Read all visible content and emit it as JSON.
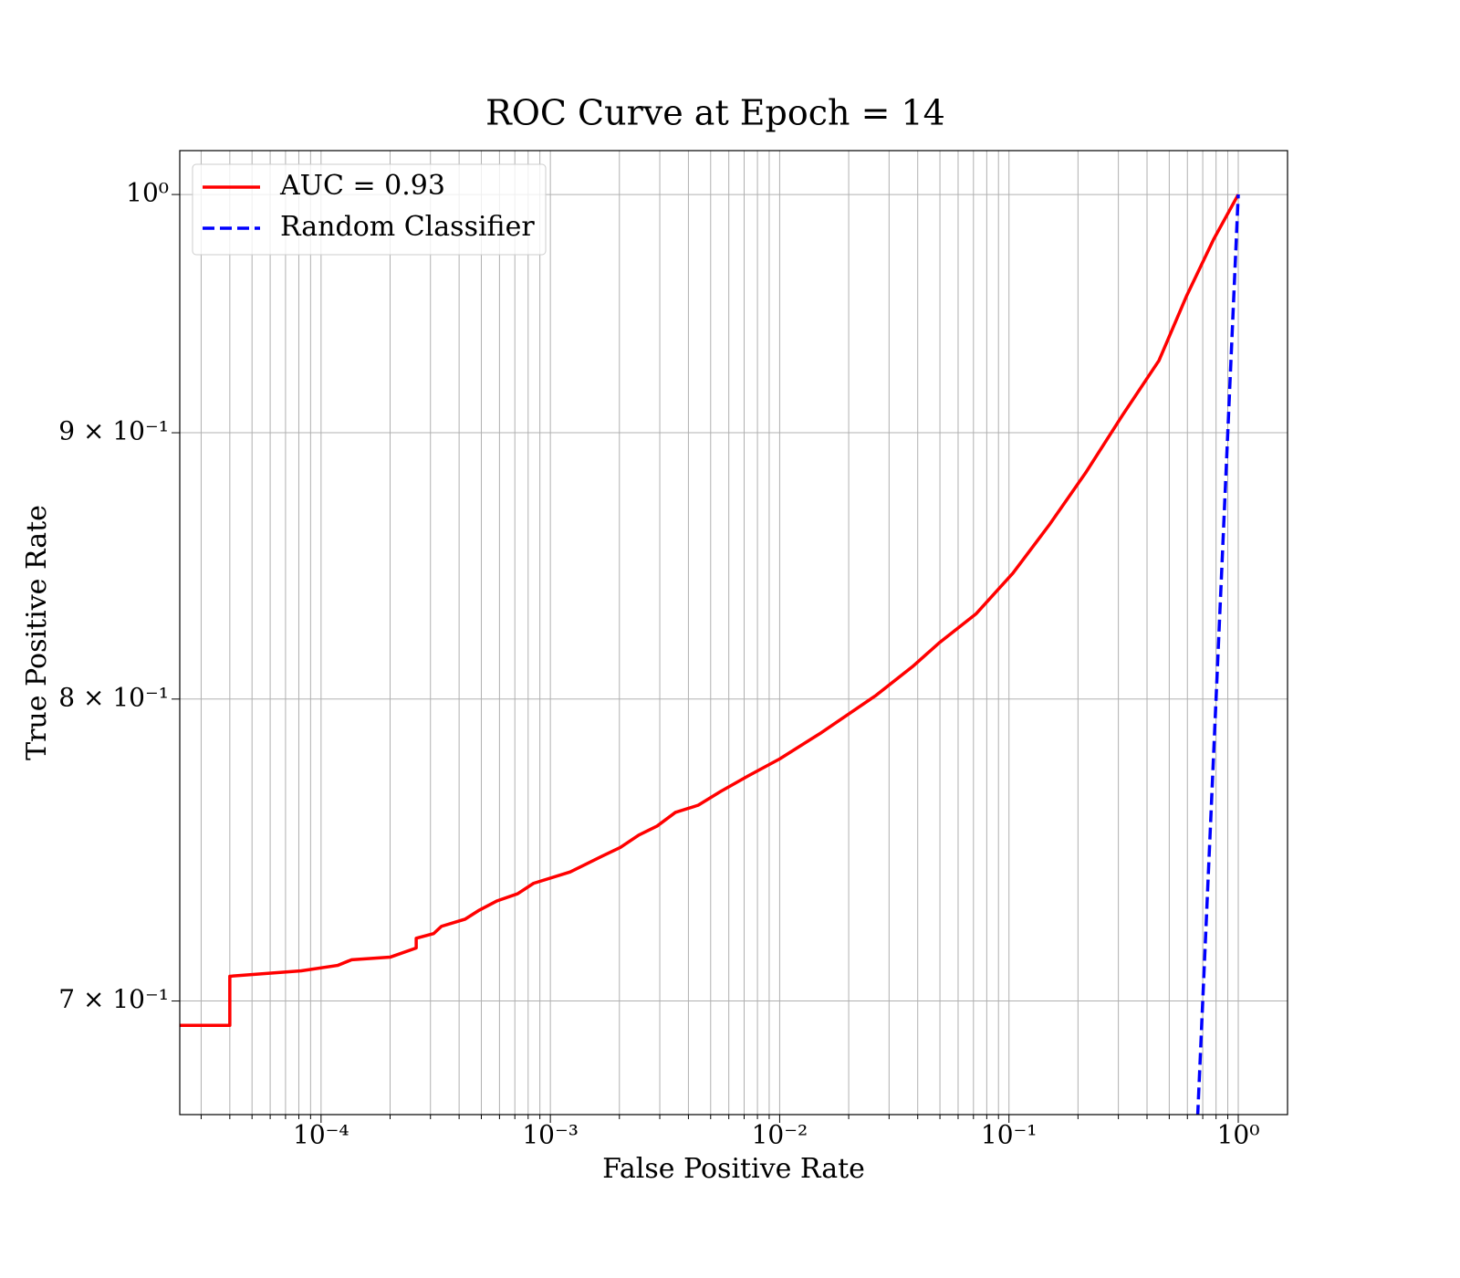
{
  "chart_data": {
    "type": "line",
    "title": "ROC Curve at Epoch = 14",
    "x_label": "False Positive Rate",
    "y_label": "True Positive Rate",
    "xscale": "log",
    "yscale": "log",
    "xlim": [
      2.42e-05,
      1.64
    ],
    "ylim": [
      0.6657,
      1.0196
    ],
    "xticks": [
      {
        "value": 0.0001,
        "label": "10⁻⁴"
      },
      {
        "value": 0.001,
        "label": "10⁻³"
      },
      {
        "value": 0.01,
        "label": "10⁻²"
      },
      {
        "value": 0.1,
        "label": "10⁻¹"
      },
      {
        "value": 1,
        "label": "10⁰"
      }
    ],
    "xminorticks": [
      3e-05,
      4e-05,
      5e-05,
      6e-05,
      7e-05,
      8e-05,
      9e-05,
      0.0002,
      0.0003,
      0.0004,
      0.0005,
      0.0006,
      0.0007,
      0.0008,
      0.0009,
      0.002,
      0.003,
      0.004,
      0.005,
      0.006,
      0.007,
      0.008,
      0.009,
      0.02,
      0.03,
      0.04,
      0.05,
      0.06,
      0.07,
      0.08,
      0.09,
      0.2,
      0.3,
      0.4,
      0.5,
      0.6,
      0.7,
      0.8,
      0.9
    ],
    "yticks": [
      {
        "value": 0.7,
        "label": "7 × 10⁻¹"
      },
      {
        "value": 0.8,
        "label": "8 × 10⁻¹"
      },
      {
        "value": 0.9,
        "label": "9 × 10⁻¹"
      },
      {
        "value": 1,
        "label": "10⁰"
      }
    ],
    "grid": true,
    "legend": "upper-left",
    "series": [
      {
        "name": "AUC = 0.93",
        "color": "#ff0000",
        "linestyle": "solid",
        "x": [
          2.42e-05,
          4e-05,
          4e-05,
          8.2e-05,
          0.000118,
          0.000136,
          0.0002,
          0.00026,
          0.00026,
          0.00031,
          0.000335,
          0.000425,
          0.00049,
          0.000586,
          0.00072,
          0.000845,
          0.00122,
          0.00168,
          0.00202,
          0.00243,
          0.00292,
          0.00351,
          0.00441,
          0.00554,
          0.0073,
          0.01,
          0.0152,
          0.0263,
          0.038,
          0.0499,
          0.072,
          0.104,
          0.15,
          0.216,
          0.312,
          0.451,
          0.593,
          0.781,
          1
        ],
        "values": [
          0.6925,
          0.6925,
          0.7077,
          0.7094,
          0.7111,
          0.7129,
          0.7137,
          0.7166,
          0.7197,
          0.7212,
          0.7235,
          0.7258,
          0.7287,
          0.7317,
          0.734,
          0.7374,
          0.7411,
          0.7463,
          0.7492,
          0.7533,
          0.7563,
          0.7609,
          0.7633,
          0.768,
          0.7733,
          0.7791,
          0.7882,
          0.8013,
          0.8116,
          0.8203,
          0.8308,
          0.8458,
          0.8641,
          0.8842,
          0.9069,
          0.9292,
          0.9558,
          0.9804,
          1
        ]
      },
      {
        "name": "Random Classifier",
        "color": "#0000ff",
        "linestyle": "dashed",
        "x": [
          0.66,
          1
        ],
        "values": [
          0.66,
          1
        ]
      }
    ]
  }
}
